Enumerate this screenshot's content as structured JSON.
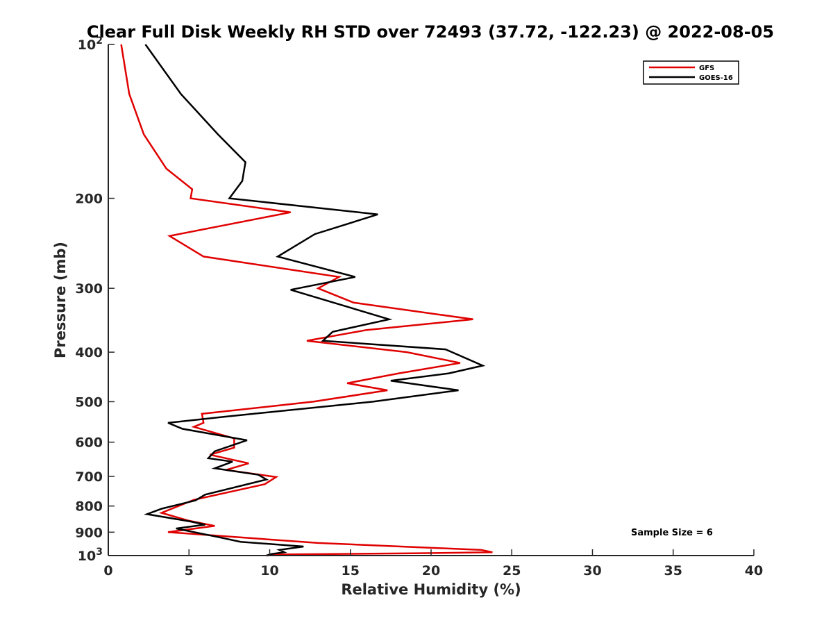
{
  "chart_data": {
    "type": "line",
    "title": "Clear Full Disk Weekly RH STD over 72493 (37.72, -122.23) @ 2022-08-05",
    "xlabel": "Relative Humidity (%)",
    "ylabel": "Pressure (mb)",
    "xlim": [
      0,
      40
    ],
    "ylim": [
      100,
      1000
    ],
    "y_scale": "log",
    "y_reversed": true,
    "x_ticks": [
      "0",
      "5",
      "10",
      "15",
      "20",
      "25",
      "30",
      "35",
      "40"
    ],
    "y_ticks": [
      {
        "value": 100,
        "base": "10",
        "exp": "2"
      },
      {
        "value": 200,
        "label": "200"
      },
      {
        "value": 300,
        "label": "300"
      },
      {
        "value": 400,
        "label": "400"
      },
      {
        "value": 500,
        "label": "500"
      },
      {
        "value": 600,
        "label": "600"
      },
      {
        "value": 700,
        "label": "700"
      },
      {
        "value": 800,
        "label": "800"
      },
      {
        "value": 900,
        "label": "900"
      },
      {
        "value": 1000,
        "base": "10",
        "exp": "3"
      }
    ],
    "grid": false,
    "legend_position": "top-right",
    "annotation": "Sample Size = 6",
    "series": [
      {
        "name": "GFS",
        "color": "#e00000",
        "points": [
          [
            0.8,
            100
          ],
          [
            1.3,
            125
          ],
          [
            2.2,
            150
          ],
          [
            3.6,
            175
          ],
          [
            5.2,
            192
          ],
          [
            5.1,
            200
          ],
          [
            11.3,
            213
          ],
          [
            3.8,
            237
          ],
          [
            5.9,
            260
          ],
          [
            14.3,
            285
          ],
          [
            13.0,
            300
          ],
          [
            15.2,
            320
          ],
          [
            22.6,
            345
          ],
          [
            16.0,
            362
          ],
          [
            12.3,
            380
          ],
          [
            18.5,
            400
          ],
          [
            21.8,
            420
          ],
          [
            18.0,
            440
          ],
          [
            14.8,
            460
          ],
          [
            17.3,
            475
          ],
          [
            12.7,
            500
          ],
          [
            5.8,
            528
          ],
          [
            5.9,
            550
          ],
          [
            5.3,
            560
          ],
          [
            7.8,
            590
          ],
          [
            7.8,
            615
          ],
          [
            6.3,
            635
          ],
          [
            8.7,
            660
          ],
          [
            7.3,
            680
          ],
          [
            10.4,
            702
          ],
          [
            9.7,
            725
          ],
          [
            5.3,
            778
          ],
          [
            3.3,
            825
          ],
          [
            5.0,
            855
          ],
          [
            6.6,
            875
          ],
          [
            3.7,
            900
          ],
          [
            13.0,
            945
          ],
          [
            23.1,
            975
          ],
          [
            23.8,
            985
          ],
          [
            18.9,
            990
          ],
          [
            10.7,
            995
          ],
          [
            9.8,
            1000
          ]
        ]
      },
      {
        "name": "GOES-16",
        "color": "#000000",
        "points": [
          [
            2.3,
            100
          ],
          [
            4.5,
            125
          ],
          [
            6.8,
            150
          ],
          [
            8.5,
            170
          ],
          [
            8.3,
            185
          ],
          [
            7.5,
            200
          ],
          [
            16.7,
            215
          ],
          [
            12.8,
            235
          ],
          [
            10.5,
            260
          ],
          [
            15.3,
            285
          ],
          [
            11.3,
            302
          ],
          [
            17.4,
            345
          ],
          [
            13.9,
            365
          ],
          [
            13.3,
            380
          ],
          [
            20.9,
            395
          ],
          [
            23.2,
            425
          ],
          [
            21.1,
            440
          ],
          [
            17.5,
            455
          ],
          [
            21.7,
            475
          ],
          [
            16.4,
            500
          ],
          [
            7.2,
            535
          ],
          [
            3.7,
            550
          ],
          [
            4.6,
            565
          ],
          [
            8.6,
            595
          ],
          [
            6.6,
            625
          ],
          [
            6.2,
            645
          ],
          [
            7.7,
            655
          ],
          [
            6.6,
            675
          ],
          [
            9.3,
            695
          ],
          [
            9.8,
            710
          ],
          [
            6.0,
            760
          ],
          [
            5.4,
            780
          ],
          [
            3.3,
            810
          ],
          [
            2.4,
            830
          ],
          [
            5.1,
            858
          ],
          [
            6.0,
            870
          ],
          [
            4.2,
            885
          ],
          [
            6.8,
            920
          ],
          [
            8.2,
            940
          ],
          [
            12.1,
            960
          ],
          [
            10.6,
            975
          ],
          [
            10.9,
            985
          ],
          [
            10.1,
            993
          ],
          [
            9.8,
            1000
          ]
        ]
      }
    ]
  }
}
